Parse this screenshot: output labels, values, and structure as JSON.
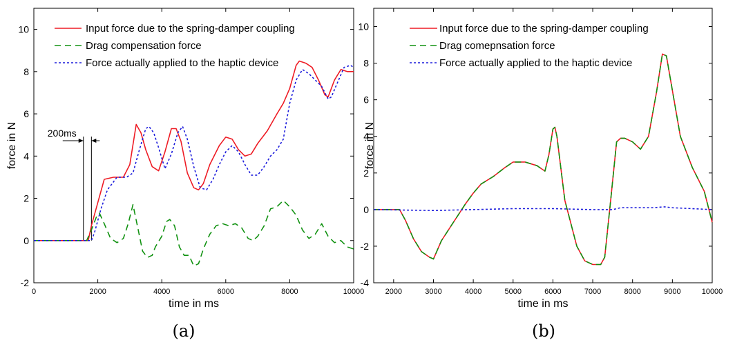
{
  "chart_data": [
    {
      "panel": "a",
      "type": "line",
      "caption": "(a)",
      "xlabel": "time in ms",
      "ylabel": "force in N",
      "xlim": [
        0,
        10000
      ],
      "ylim": [
        -2,
        11
      ],
      "xticks": [
        0,
        2000,
        4000,
        6000,
        8000,
        10000
      ],
      "yticks": [
        -2,
        0,
        2,
        4,
        6,
        8,
        10
      ],
      "xtick_labels": [
        "0",
        "2000",
        "4000",
        "6000",
        "8000",
        "10000"
      ],
      "ytick_labels": [
        "-2",
        "0",
        "2",
        "4",
        "6",
        "8",
        "10"
      ],
      "legend_position": "top-left",
      "annotation": {
        "text": "200ms",
        "x1": 1550,
        "x2": 1800
      },
      "series": [
        {
          "name": "Input force due to the spring-damper coupling",
          "color": "#ee1c25",
          "dash": "solid",
          "x": [
            0,
            1700,
            1800,
            2000,
            2200,
            2500,
            2800,
            3000,
            3200,
            3350,
            3500,
            3700,
            3900,
            4100,
            4300,
            4450,
            4600,
            4800,
            5000,
            5150,
            5300,
            5500,
            5800,
            6000,
            6200,
            6400,
            6600,
            6800,
            7000,
            7300,
            7600,
            7800,
            8000,
            8200,
            8300,
            8500,
            8700,
            8900,
            9100,
            9200,
            9400,
            9600,
            9800,
            10000
          ],
          "y": [
            0,
            0,
            0.7,
            1.8,
            2.9,
            3.0,
            3.0,
            3.6,
            5.5,
            5.1,
            4.3,
            3.5,
            3.3,
            4.2,
            5.3,
            5.3,
            4.7,
            3.2,
            2.5,
            2.4,
            2.7,
            3.6,
            4.5,
            4.9,
            4.8,
            4.3,
            4.0,
            4.1,
            4.6,
            5.2,
            6.0,
            6.5,
            7.2,
            8.3,
            8.5,
            8.4,
            8.2,
            7.6,
            6.9,
            6.8,
            7.6,
            8.1,
            8.0,
            8.0
          ]
        },
        {
          "name": "Drag compensation force",
          "color": "#129212",
          "dash": "dashed",
          "x": [
            0,
            1650,
            1800,
            1950,
            2050,
            2200,
            2400,
            2600,
            2800,
            2950,
            3100,
            3250,
            3400,
            3550,
            3700,
            3800,
            4000,
            4150,
            4250,
            4400,
            4550,
            4700,
            4850,
            5000,
            5150,
            5300,
            5500,
            5700,
            5900,
            6100,
            6300,
            6500,
            6700,
            6850,
            7000,
            7200,
            7400,
            7600,
            7800,
            8000,
            8200,
            8400,
            8600,
            8800,
            9000,
            9200,
            9400,
            9600,
            9800,
            10000
          ],
          "y": [
            0,
            0,
            0.5,
            1.1,
            1.3,
            0.8,
            0.1,
            -0.1,
            0.1,
            0.8,
            1.7,
            0.6,
            -0.5,
            -0.8,
            -0.7,
            -0.3,
            0.2,
            0.9,
            1.0,
            0.7,
            -0.3,
            -0.7,
            -0.7,
            -1.2,
            -1.1,
            -0.4,
            0.3,
            0.7,
            0.8,
            0.7,
            0.8,
            0.6,
            0.1,
            0.0,
            0.2,
            0.7,
            1.5,
            1.6,
            1.9,
            1.6,
            1.2,
            0.5,
            0.1,
            0.3,
            0.8,
            0.2,
            -0.1,
            0.0,
            -0.3,
            -0.4
          ]
        },
        {
          "name": "Force actually applied to the haptic device",
          "color": "#1c1cdc",
          "dash": "dotted",
          "x": [
            0,
            1800,
            1900,
            2100,
            2300,
            2600,
            2900,
            3100,
            3300,
            3500,
            3600,
            3750,
            3900,
            4100,
            4300,
            4500,
            4650,
            4800,
            5000,
            5200,
            5400,
            5600,
            5800,
            6000,
            6200,
            6400,
            6600,
            6800,
            7000,
            7200,
            7400,
            7600,
            7800,
            8000,
            8200,
            8400,
            8600,
            8800,
            9000,
            9200,
            9300,
            9500,
            9700,
            9900,
            10000
          ],
          "y": [
            0,
            0,
            0.4,
            1.5,
            2.4,
            3.0,
            3.0,
            3.2,
            4.3,
            5.3,
            5.4,
            5.1,
            4.4,
            3.4,
            4.1,
            5.1,
            5.4,
            4.8,
            3.5,
            2.5,
            2.4,
            2.9,
            3.6,
            4.2,
            4.5,
            4.2,
            3.6,
            3.1,
            3.1,
            3.5,
            4.0,
            4.3,
            4.8,
            6.5,
            7.6,
            8.1,
            7.9,
            7.6,
            7.3,
            6.7,
            6.8,
            7.5,
            8.2,
            8.3,
            8.2
          ]
        }
      ]
    },
    {
      "panel": "b",
      "type": "line",
      "caption": "(b)",
      "xlabel": "time in ms",
      "ylabel": "force in N",
      "xlim": [
        1500,
        10000
      ],
      "ylim": [
        -4,
        11
      ],
      "xticks": [
        2000,
        3000,
        4000,
        5000,
        6000,
        7000,
        8000,
        9000,
        10000
      ],
      "yticks": [
        -4,
        -2,
        0,
        2,
        4,
        6,
        8,
        10
      ],
      "xtick_labels": [
        "2000",
        "3000",
        "4000",
        "5000",
        "6000",
        "7000",
        "8000",
        "9000",
        "10000"
      ],
      "ytick_labels": [
        "-4",
        "-2",
        "0",
        "2",
        "4",
        "6",
        "8",
        "10"
      ],
      "legend_position": "top-left",
      "series": [
        {
          "name": "Input force due to the spring-damper coupling",
          "color": "#ee1c25",
          "dash": "solid",
          "x": [
            1500,
            2150,
            2300,
            2500,
            2700,
            2900,
            3000,
            3200,
            3500,
            3800,
            4000,
            4200,
            4500,
            4800,
            5000,
            5300,
            5600,
            5800,
            5900,
            6000,
            6050,
            6100,
            6300,
            6600,
            6800,
            7000,
            7200,
            7300,
            7450,
            7600,
            7700,
            7800,
            8000,
            8200,
            8400,
            8600,
            8750,
            8850,
            9000,
            9200,
            9500,
            9800,
            10000
          ],
          "y": [
            0,
            0,
            -0.6,
            -1.6,
            -2.3,
            -2.6,
            -2.7,
            -1.7,
            -0.7,
            0.3,
            0.9,
            1.4,
            1.8,
            2.3,
            2.6,
            2.6,
            2.4,
            2.1,
            3.0,
            4.4,
            4.5,
            4.0,
            0.5,
            -2.0,
            -2.8,
            -3.0,
            -3.0,
            -2.6,
            0.5,
            3.7,
            3.9,
            3.9,
            3.7,
            3.3,
            4.0,
            6.4,
            8.5,
            8.4,
            6.5,
            4.0,
            2.3,
            1.0,
            -0.7
          ]
        },
        {
          "name": "Drag comepnsation force",
          "color": "#129212",
          "dash": "dashed",
          "x": [
            1500,
            2150,
            2300,
            2500,
            2700,
            2900,
            3000,
            3200,
            3500,
            3800,
            4000,
            4200,
            4500,
            4800,
            5000,
            5300,
            5600,
            5800,
            5900,
            6000,
            6050,
            6100,
            6300,
            6600,
            6800,
            7000,
            7200,
            7300,
            7450,
            7600,
            7700,
            7800,
            8000,
            8200,
            8400,
            8600,
            8750,
            8850,
            9000,
            9200,
            9500,
            9800,
            10000
          ],
          "y": [
            0,
            0,
            -0.6,
            -1.6,
            -2.3,
            -2.6,
            -2.7,
            -1.7,
            -0.7,
            0.3,
            0.9,
            1.4,
            1.8,
            2.3,
            2.6,
            2.6,
            2.4,
            2.1,
            3.0,
            4.4,
            4.5,
            4.0,
            0.5,
            -2.0,
            -2.8,
            -3.0,
            -3.0,
            -2.6,
            0.5,
            3.7,
            3.9,
            3.9,
            3.7,
            3.3,
            4.0,
            6.4,
            8.5,
            8.4,
            6.5,
            4.0,
            2.3,
            1.0,
            -0.7
          ]
        },
        {
          "name": "Force actually applied to the haptic device",
          "color": "#1c1cdc",
          "dash": "dotted",
          "x": [
            1500,
            3000,
            4000,
            5000,
            6000,
            7000,
            7500,
            7700,
            8000,
            8500,
            8800,
            9000,
            9500,
            10000
          ],
          "y": [
            0,
            -0.05,
            0,
            0.05,
            0.05,
            0,
            0,
            0.1,
            0.1,
            0.1,
            0.15,
            0.1,
            0.05,
            0
          ]
        }
      ]
    }
  ]
}
